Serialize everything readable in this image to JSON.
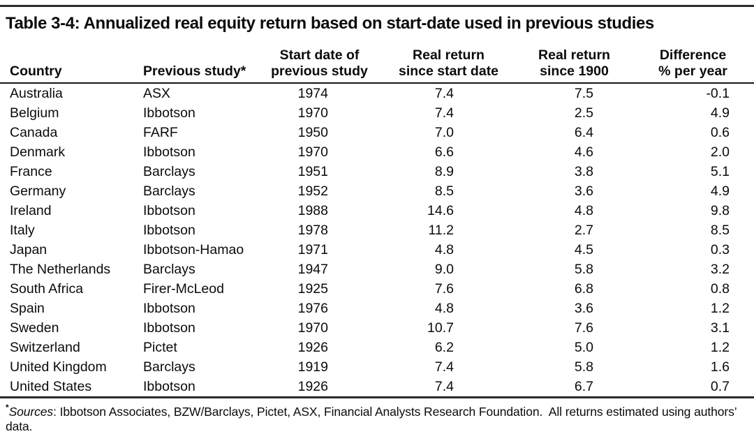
{
  "table": {
    "title": "Table 3-4: Annualized real equity return based on start-date used in previous studies",
    "columns": [
      {
        "id": "country",
        "header": [
          "",
          "Country"
        ]
      },
      {
        "id": "study",
        "header": [
          "",
          "Previous study*"
        ]
      },
      {
        "id": "start",
        "header": [
          "Start date of",
          "previous study"
        ]
      },
      {
        "id": "since_start",
        "header": [
          "Real return",
          "since start date"
        ]
      },
      {
        "id": "since_1900",
        "header": [
          "Real return",
          "since 1900"
        ]
      },
      {
        "id": "diff",
        "header": [
          "Difference",
          "% per year"
        ]
      }
    ],
    "rows": [
      {
        "country": "Australia",
        "study": "ASX",
        "start": "1974",
        "since_start": "7.4",
        "since_1900": "7.5",
        "diff": "-0.1"
      },
      {
        "country": "Belgium",
        "study": "Ibbotson",
        "start": "1970",
        "since_start": "7.4",
        "since_1900": "2.5",
        "diff": "4.9"
      },
      {
        "country": "Canada",
        "study": "FARF",
        "start": "1950",
        "since_start": "7.0",
        "since_1900": "6.4",
        "diff": "0.6"
      },
      {
        "country": "Denmark",
        "study": "Ibbotson",
        "start": "1970",
        "since_start": "6.6",
        "since_1900": "4.6",
        "diff": "2.0"
      },
      {
        "country": "France",
        "study": "Barclays",
        "start": "1951",
        "since_start": "8.9",
        "since_1900": "3.8",
        "diff": "5.1"
      },
      {
        "country": "Germany",
        "study": "Barclays",
        "start": "1952",
        "since_start": "8.5",
        "since_1900": "3.6",
        "diff": "4.9"
      },
      {
        "country": "Ireland",
        "study": "Ibbotson",
        "start": "1988",
        "since_start": "14.6",
        "since_1900": "4.8",
        "diff": "9.8"
      },
      {
        "country": "Italy",
        "study": "Ibbotson",
        "start": "1978",
        "since_start": "11.2",
        "since_1900": "2.7",
        "diff": "8.5"
      },
      {
        "country": "Japan",
        "study": "Ibbotson-Hamao",
        "start": "1971",
        "since_start": "4.8",
        "since_1900": "4.5",
        "diff": "0.3"
      },
      {
        "country": "The Netherlands",
        "study": "Barclays",
        "start": "1947",
        "since_start": "9.0",
        "since_1900": "5.8",
        "diff": "3.2"
      },
      {
        "country": "South Africa",
        "study": "Firer-McLeod",
        "start": "1925",
        "since_start": "7.6",
        "since_1900": "6.8",
        "diff": "0.8"
      },
      {
        "country": "Spain",
        "study": "Ibbotson",
        "start": "1976",
        "since_start": "4.8",
        "since_1900": "3.6",
        "diff": "1.2"
      },
      {
        "country": "Sweden",
        "study": "Ibbotson",
        "start": "1970",
        "since_start": "10.7",
        "since_1900": "7.6",
        "diff": "3.1"
      },
      {
        "country": "Switzerland",
        "study": "Pictet",
        "start": "1926",
        "since_start": "6.2",
        "since_1900": "5.0",
        "diff": "1.2"
      },
      {
        "country": "United Kingdom",
        "study": "Barclays",
        "start": "1919",
        "since_start": "7.4",
        "since_1900": "5.8",
        "diff": "1.6"
      },
      {
        "country": "United States",
        "study": "Ibbotson",
        "start": "1926",
        "since_start": "7.4",
        "since_1900": "6.7",
        "diff": "0.7"
      }
    ],
    "footnote": {
      "marker": "*",
      "italic": "Sources",
      "rest": ": Ibbotson Associates, BZW/Barclays, Pictet, ASX, Financial Analysts Research Foundation.  All returns estimated using authors’ data."
    }
  }
}
